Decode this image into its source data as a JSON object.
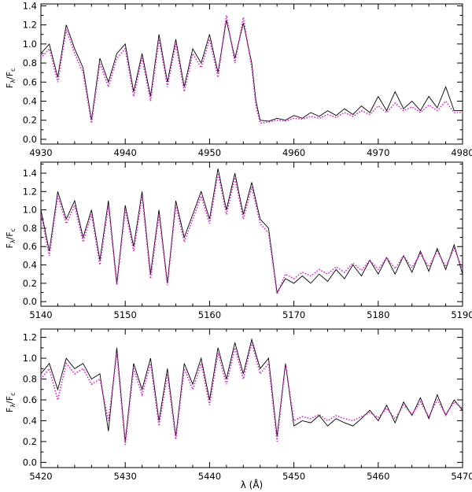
{
  "chart_data": [
    {
      "type": "line",
      "xlim": [
        4930,
        4980
      ],
      "ylim": [
        -0.05,
        1.42
      ],
      "x_ticks": [
        "4930",
        "4940",
        "4950",
        "4960",
        "4970",
        "4980"
      ],
      "y_ticks": [
        "0.0",
        "0.2",
        "0.4",
        "0.6",
        "0.8",
        "1.0",
        "1.2",
        "1.4"
      ],
      "ylabel": "Fλ/Fc",
      "xlabel": "",
      "grid": false,
      "series": [
        {
          "style": "solid",
          "color": "#000000",
          "x": [
            4930,
            4931,
            4932,
            4933,
            4934,
            4935,
            4936,
            4937,
            4938,
            4939,
            4940,
            4941,
            4942,
            4943,
            4944,
            4945,
            4946,
            4947,
            4948,
            4949,
            4950,
            4951,
            4952,
            4953,
            4954,
            4955,
            4955.5,
            4956,
            4957,
            4958,
            4959,
            4960,
            4961,
            4962,
            4963,
            4964,
            4965,
            4966,
            4967,
            4968,
            4969,
            4970,
            4971,
            4972,
            4973,
            4974,
            4975,
            4976,
            4977,
            4978,
            4979,
            4980
          ],
          "y": [
            0.9,
            1.0,
            0.65,
            1.2,
            0.95,
            0.75,
            0.2,
            0.85,
            0.6,
            0.9,
            1.0,
            0.5,
            0.9,
            0.45,
            1.1,
            0.6,
            1.05,
            0.55,
            0.95,
            0.8,
            1.1,
            0.7,
            1.25,
            0.85,
            1.22,
            0.8,
            0.4,
            0.2,
            0.19,
            0.22,
            0.2,
            0.25,
            0.22,
            0.28,
            0.24,
            0.3,
            0.25,
            0.32,
            0.26,
            0.35,
            0.28,
            0.45,
            0.3,
            0.5,
            0.32,
            0.4,
            0.3,
            0.45,
            0.33,
            0.55,
            0.3,
            0.3
          ]
        },
        {
          "style": "dotted",
          "color": "#e01ed0",
          "x": [
            4930,
            4931,
            4932,
            4933,
            4934,
            4935,
            4936,
            4937,
            4938,
            4939,
            4940,
            4941,
            4942,
            4943,
            4944,
            4945,
            4946,
            4947,
            4948,
            4949,
            4950,
            4951,
            4952,
            4953,
            4954,
            4955,
            4955.5,
            4956,
            4957,
            4958,
            4959,
            4960,
            4961,
            4962,
            4963,
            4964,
            4965,
            4966,
            4967,
            4968,
            4969,
            4970,
            4971,
            4972,
            4973,
            4974,
            4975,
            4976,
            4977,
            4978,
            4979,
            4980
          ],
          "y": [
            0.85,
            0.95,
            0.6,
            1.15,
            0.9,
            0.7,
            0.17,
            0.8,
            0.55,
            0.85,
            0.95,
            0.45,
            0.85,
            0.4,
            1.05,
            0.55,
            1.0,
            0.5,
            0.9,
            0.75,
            1.05,
            0.65,
            1.3,
            0.8,
            1.28,
            0.75,
            0.35,
            0.17,
            0.18,
            0.2,
            0.19,
            0.22,
            0.21,
            0.24,
            0.22,
            0.26,
            0.23,
            0.28,
            0.24,
            0.3,
            0.26,
            0.35,
            0.28,
            0.38,
            0.3,
            0.34,
            0.28,
            0.36,
            0.3,
            0.4,
            0.28,
            0.28
          ]
        }
      ]
    },
    {
      "type": "line",
      "xlim": [
        5140,
        5190
      ],
      "ylim": [
        -0.05,
        1.52
      ],
      "x_ticks": [
        "5140",
        "5150",
        "5160",
        "5170",
        "5180",
        "5190"
      ],
      "y_ticks": [
        "0.0",
        "0.2",
        "0.4",
        "0.6",
        "0.8",
        "1.0",
        "1.2",
        "1.4"
      ],
      "ylabel": "Fλ/Fc",
      "xlabel": "",
      "grid": false,
      "series": [
        {
          "style": "solid",
          "color": "#000000",
          "x": [
            5140,
            5141,
            5142,
            5143,
            5144,
            5145,
            5146,
            5147,
            5148,
            5149,
            5150,
            5151,
            5152,
            5153,
            5154,
            5155,
            5156,
            5157,
            5158,
            5159,
            5160,
            5161,
            5162,
            5163,
            5164,
            5165,
            5166,
            5167,
            5168,
            5169,
            5170,
            5171,
            5172,
            5173,
            5174,
            5175,
            5176,
            5177,
            5178,
            5179,
            5180,
            5181,
            5182,
            5183,
            5184,
            5185,
            5186,
            5187,
            5188,
            5189,
            5190
          ],
          "y": [
            1.0,
            0.55,
            1.2,
            0.9,
            1.1,
            0.7,
            1.0,
            0.45,
            1.1,
            0.2,
            1.05,
            0.6,
            1.2,
            0.3,
            1.0,
            0.2,
            1.1,
            0.7,
            0.95,
            1.2,
            0.9,
            1.45,
            1.0,
            1.4,
            0.95,
            1.3,
            0.9,
            0.8,
            0.1,
            0.25,
            0.2,
            0.28,
            0.2,
            0.3,
            0.22,
            0.35,
            0.25,
            0.4,
            0.28,
            0.45,
            0.3,
            0.48,
            0.3,
            0.5,
            0.32,
            0.55,
            0.33,
            0.58,
            0.35,
            0.62,
            0.3
          ]
        },
        {
          "style": "dotted",
          "color": "#e01ed0",
          "x": [
            5140,
            5141,
            5142,
            5143,
            5144,
            5145,
            5146,
            5147,
            5148,
            5149,
            5150,
            5151,
            5152,
            5153,
            5154,
            5155,
            5156,
            5157,
            5158,
            5159,
            5160,
            5161,
            5162,
            5163,
            5164,
            5165,
            5166,
            5167,
            5168,
            5169,
            5170,
            5171,
            5172,
            5173,
            5174,
            5175,
            5176,
            5177,
            5178,
            5179,
            5180,
            5181,
            5182,
            5183,
            5184,
            5185,
            5186,
            5187,
            5188,
            5189,
            5190
          ],
          "y": [
            0.95,
            0.5,
            1.15,
            0.85,
            1.05,
            0.65,
            0.95,
            0.4,
            1.05,
            0.18,
            1.0,
            0.55,
            1.15,
            0.25,
            0.95,
            0.18,
            1.05,
            0.65,
            0.9,
            1.15,
            0.85,
            1.4,
            0.95,
            1.35,
            0.9,
            1.25,
            0.85,
            0.75,
            0.08,
            0.3,
            0.25,
            0.32,
            0.28,
            0.35,
            0.3,
            0.38,
            0.32,
            0.42,
            0.34,
            0.45,
            0.35,
            0.48,
            0.36,
            0.5,
            0.37,
            0.52,
            0.38,
            0.55,
            0.38,
            0.58,
            0.35
          ]
        }
      ]
    },
    {
      "type": "line",
      "xlim": [
        5420,
        5470
      ],
      "ylim": [
        -0.05,
        1.28
      ],
      "x_ticks": [
        "5420",
        "5430",
        "5440",
        "5450",
        "5460",
        "5470"
      ],
      "y_ticks": [
        "0.0",
        "0.2",
        "0.4",
        "0.6",
        "0.8",
        "1.0",
        "1.2"
      ],
      "ylabel": "Fλ/Fc",
      "xlabel": "λ (Å)",
      "grid": false,
      "series": [
        {
          "style": "solid",
          "color": "#000000",
          "x": [
            5420,
            5421,
            5422,
            5423,
            5424,
            5425,
            5426,
            5427,
            5428,
            5429,
            5430,
            5431,
            5432,
            5433,
            5434,
            5435,
            5436,
            5437,
            5438,
            5439,
            5440,
            5441,
            5442,
            5443,
            5444,
            5445,
            5446,
            5447,
            5448,
            5449,
            5450,
            5451,
            5452,
            5453,
            5454,
            5455,
            5456,
            5457,
            5458,
            5459,
            5460,
            5461,
            5462,
            5463,
            5464,
            5465,
            5466,
            5467,
            5468,
            5469,
            5470
          ],
          "y": [
            0.85,
            0.95,
            0.7,
            1.0,
            0.9,
            0.95,
            0.8,
            0.85,
            0.3,
            1.1,
            0.2,
            0.95,
            0.7,
            1.0,
            0.4,
            0.9,
            0.25,
            0.95,
            0.75,
            1.0,
            0.6,
            1.1,
            0.8,
            1.15,
            0.85,
            1.18,
            0.9,
            1.0,
            0.25,
            0.95,
            0.35,
            0.4,
            0.38,
            0.45,
            0.35,
            0.42,
            0.38,
            0.35,
            0.42,
            0.5,
            0.4,
            0.55,
            0.38,
            0.58,
            0.45,
            0.62,
            0.42,
            0.65,
            0.45,
            0.6,
            0.5
          ]
        },
        {
          "style": "dotted",
          "color": "#e01ed0",
          "x": [
            5420,
            5421,
            5422,
            5423,
            5424,
            5425,
            5426,
            5427,
            5428,
            5429,
            5430,
            5431,
            5432,
            5433,
            5434,
            5435,
            5436,
            5437,
            5438,
            5439,
            5440,
            5441,
            5442,
            5443,
            5444,
            5445,
            5446,
            5447,
            5448,
            5449,
            5450,
            5451,
            5452,
            5453,
            5454,
            5455,
            5456,
            5457,
            5458,
            5459,
            5460,
            5461,
            5462,
            5463,
            5464,
            5465,
            5466,
            5467,
            5468,
            5469,
            5470
          ],
          "y": [
            0.8,
            0.9,
            0.6,
            0.95,
            0.85,
            0.9,
            0.75,
            0.8,
            0.4,
            1.05,
            0.17,
            0.9,
            0.65,
            0.95,
            0.35,
            0.85,
            0.22,
            0.9,
            0.7,
            0.95,
            0.55,
            1.05,
            0.75,
            1.1,
            0.8,
            1.15,
            0.85,
            0.95,
            0.2,
            0.95,
            0.4,
            0.44,
            0.42,
            0.46,
            0.4,
            0.45,
            0.42,
            0.4,
            0.44,
            0.48,
            0.43,
            0.52,
            0.42,
            0.55,
            0.46,
            0.58,
            0.44,
            0.6,
            0.46,
            0.58,
            0.52
          ]
        }
      ]
    }
  ]
}
